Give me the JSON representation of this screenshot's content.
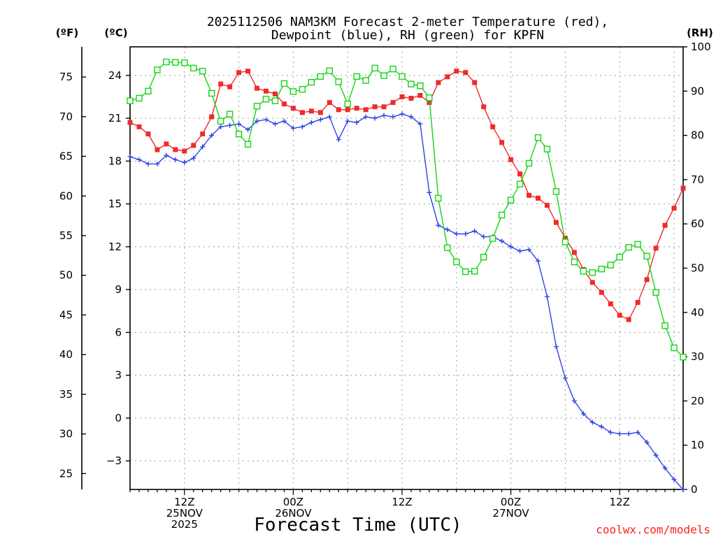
{
  "chart_data": {
    "type": "line",
    "title_lines": [
      "2025112506 NAM3KM Forecast 2-meter Temperature (red),",
      "Dewpoint (blue), RH (green) for KPFN"
    ],
    "xlabel": "Forecast Time (UTC)",
    "credit": "coolwx.com/models",
    "units": {
      "fahrenheit": "(ºF)",
      "celsius": "(ºC)",
      "rh": "(RH)"
    },
    "x_unit": "forecast hour",
    "x_range": [
      1,
      62
    ],
    "celsius_range": [
      -5,
      26
    ],
    "rh_range": [
      0,
      100
    ],
    "celsius_ticks": [
      -3,
      0,
      3,
      6,
      9,
      12,
      15,
      18,
      21,
      24
    ],
    "fahrenheit_ticks": [
      25,
      30,
      35,
      40,
      45,
      50,
      55,
      60,
      65,
      70,
      75
    ],
    "rh_ticks": [
      0,
      10,
      20,
      30,
      40,
      50,
      60,
      70,
      80,
      90,
      100
    ],
    "x_ticks": [
      {
        "hour": 7,
        "lines": [
          "12Z",
          "25NOV",
          "2025"
        ]
      },
      {
        "hour": 19,
        "lines": [
          "00Z",
          "26NOV"
        ]
      },
      {
        "hour": 31,
        "lines": [
          "12Z"
        ]
      },
      {
        "hour": 43,
        "lines": [
          "00Z",
          "27NOV"
        ]
      },
      {
        "hour": 55,
        "lines": [
          "12Z"
        ]
      }
    ],
    "series": [
      {
        "name": "2-meter Temperature",
        "axis": "celsius",
        "color": "#ee2b2b",
        "marker": "filled-square",
        "x": [
          1,
          2,
          3,
          4,
          5,
          6,
          7,
          8,
          9,
          10,
          11,
          12,
          13,
          14,
          15,
          16,
          17,
          18,
          19,
          20,
          21,
          22,
          23,
          24,
          25,
          26,
          27,
          28,
          29,
          30,
          31,
          32,
          33,
          34,
          35,
          36,
          37,
          38,
          39,
          40,
          41,
          42,
          43,
          44,
          45,
          46,
          47,
          48,
          49,
          50,
          51,
          52,
          53,
          54,
          55,
          56,
          57,
          58,
          59,
          60,
          61,
          62
        ],
        "values": [
          20.7,
          20.4,
          19.9,
          18.8,
          19.2,
          18.8,
          18.7,
          19.1,
          19.9,
          21.1,
          23.4,
          23.2,
          24.2,
          24.3,
          23.1,
          22.9,
          22.7,
          22.0,
          21.7,
          21.4,
          21.5,
          21.4,
          22.1,
          21.6,
          21.6,
          21.7,
          21.6,
          21.8,
          21.8,
          22.1,
          22.5,
          22.4,
          22.6,
          22.1,
          23.5,
          23.9,
          24.3,
          24.2,
          23.5,
          21.8,
          20.4,
          19.3,
          18.1,
          17.1,
          15.6,
          15.4,
          14.9,
          13.7,
          12.6,
          11.6,
          10.4,
          9.5,
          8.8,
          8.0,
          7.2,
          6.9,
          8.1,
          9.7,
          11.9,
          13.5,
          14.7,
          16.1
        ]
      },
      {
        "name": "Dewpoint",
        "axis": "celsius",
        "color": "#2e44e6",
        "marker": "plus",
        "x": [
          1,
          2,
          3,
          4,
          5,
          6,
          7,
          8,
          9,
          10,
          11,
          12,
          13,
          14,
          15,
          16,
          17,
          18,
          19,
          20,
          21,
          22,
          23,
          24,
          25,
          26,
          27,
          28,
          29,
          30,
          31,
          32,
          33,
          34,
          35,
          36,
          37,
          38,
          39,
          40,
          41,
          42,
          43,
          44,
          45,
          46,
          47,
          48,
          49,
          50,
          51,
          52,
          53,
          54,
          55,
          56,
          57,
          58,
          59,
          60,
          61,
          62
        ],
        "values": [
          18.3,
          18.1,
          17.8,
          17.8,
          18.4,
          18.1,
          17.9,
          18.2,
          19.0,
          19.8,
          20.4,
          20.5,
          20.6,
          20.2,
          20.8,
          20.9,
          20.6,
          20.8,
          20.3,
          20.4,
          20.7,
          20.9,
          21.1,
          19.5,
          20.8,
          20.7,
          21.1,
          21.0,
          21.2,
          21.1,
          21.3,
          21.1,
          20.6,
          15.8,
          13.5,
          13.2,
          12.9,
          12.9,
          13.1,
          12.7,
          12.7,
          12.4,
          12.0,
          11.7,
          11.8,
          11.0,
          8.5,
          5.0,
          2.8,
          1.2,
          0.3,
          -0.3,
          -0.6,
          -1.0,
          -1.1,
          -1.1,
          -1.0,
          -1.7,
          -2.6,
          -3.5,
          -4.3,
          -5.0
        ]
      },
      {
        "name": "RH",
        "axis": "rh",
        "color": "#16d416",
        "marker": "open-square",
        "x": [
          1,
          2,
          3,
          4,
          5,
          6,
          7,
          8,
          9,
          10,
          11,
          12,
          13,
          14,
          15,
          16,
          17,
          18,
          19,
          20,
          21,
          22,
          23,
          24,
          25,
          26,
          27,
          28,
          29,
          30,
          31,
          32,
          33,
          34,
          35,
          36,
          37,
          38,
          39,
          40,
          41,
          42,
          43,
          44,
          45,
          46,
          47,
          48,
          49,
          50,
          51,
          52,
          53,
          54,
          55,
          56,
          57,
          58,
          59,
          60,
          61,
          62
        ],
        "values": [
          87.8,
          88.4,
          90.0,
          94.8,
          96.6,
          96.5,
          96.4,
          95.2,
          94.5,
          89.5,
          83.2,
          84.8,
          80.3,
          78.0,
          86.6,
          88.2,
          87.8,
          91.7,
          89.9,
          90.4,
          92.0,
          93.3,
          94.6,
          92.1,
          87.1,
          93.3,
          92.4,
          95.2,
          93.5,
          95.0,
          93.3,
          91.6,
          91.2,
          88.5,
          65.8,
          54.6,
          51.4,
          49.2,
          49.3,
          52.5,
          56.7,
          62.0,
          65.4,
          69.0,
          73.7,
          79.5,
          76.9,
          67.3,
          55.9,
          51.4,
          49.3,
          49.0,
          49.8,
          50.7,
          52.5,
          54.7,
          55.4,
          52.7,
          44.5,
          37.0,
          32.0,
          29.9
        ]
      }
    ]
  }
}
